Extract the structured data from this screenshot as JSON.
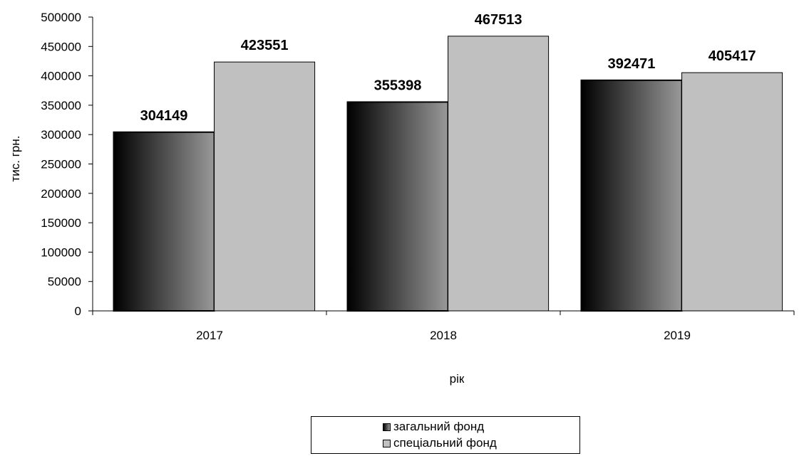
{
  "chart_data": {
    "type": "bar",
    "categories": [
      "2017",
      "2018",
      "2019"
    ],
    "series": [
      {
        "name": "загальний фонд",
        "values": [
          304149,
          355398,
          392471
        ]
      },
      {
        "name": "спеціальний фонд",
        "values": [
          423551,
          467513,
          405417
        ]
      }
    ],
    "data_labels": [
      [
        "304149",
        "355398",
        "392471"
      ],
      [
        "423551",
        "467513",
        "405417"
      ]
    ],
    "xlabel": "рік",
    "ylabel": "тис. грн.",
    "ylim": [
      0,
      500000
    ],
    "yticks": [
      "0",
      "50000",
      "100000",
      "150000",
      "200000",
      "250000",
      "300000",
      "350000",
      "400000",
      "450000",
      "500000"
    ],
    "grid": false,
    "legend_position": "bottom",
    "colors": {
      "series1_dark": "#000000",
      "series1_light": "#999999",
      "series2": "#c0c0c0"
    }
  }
}
